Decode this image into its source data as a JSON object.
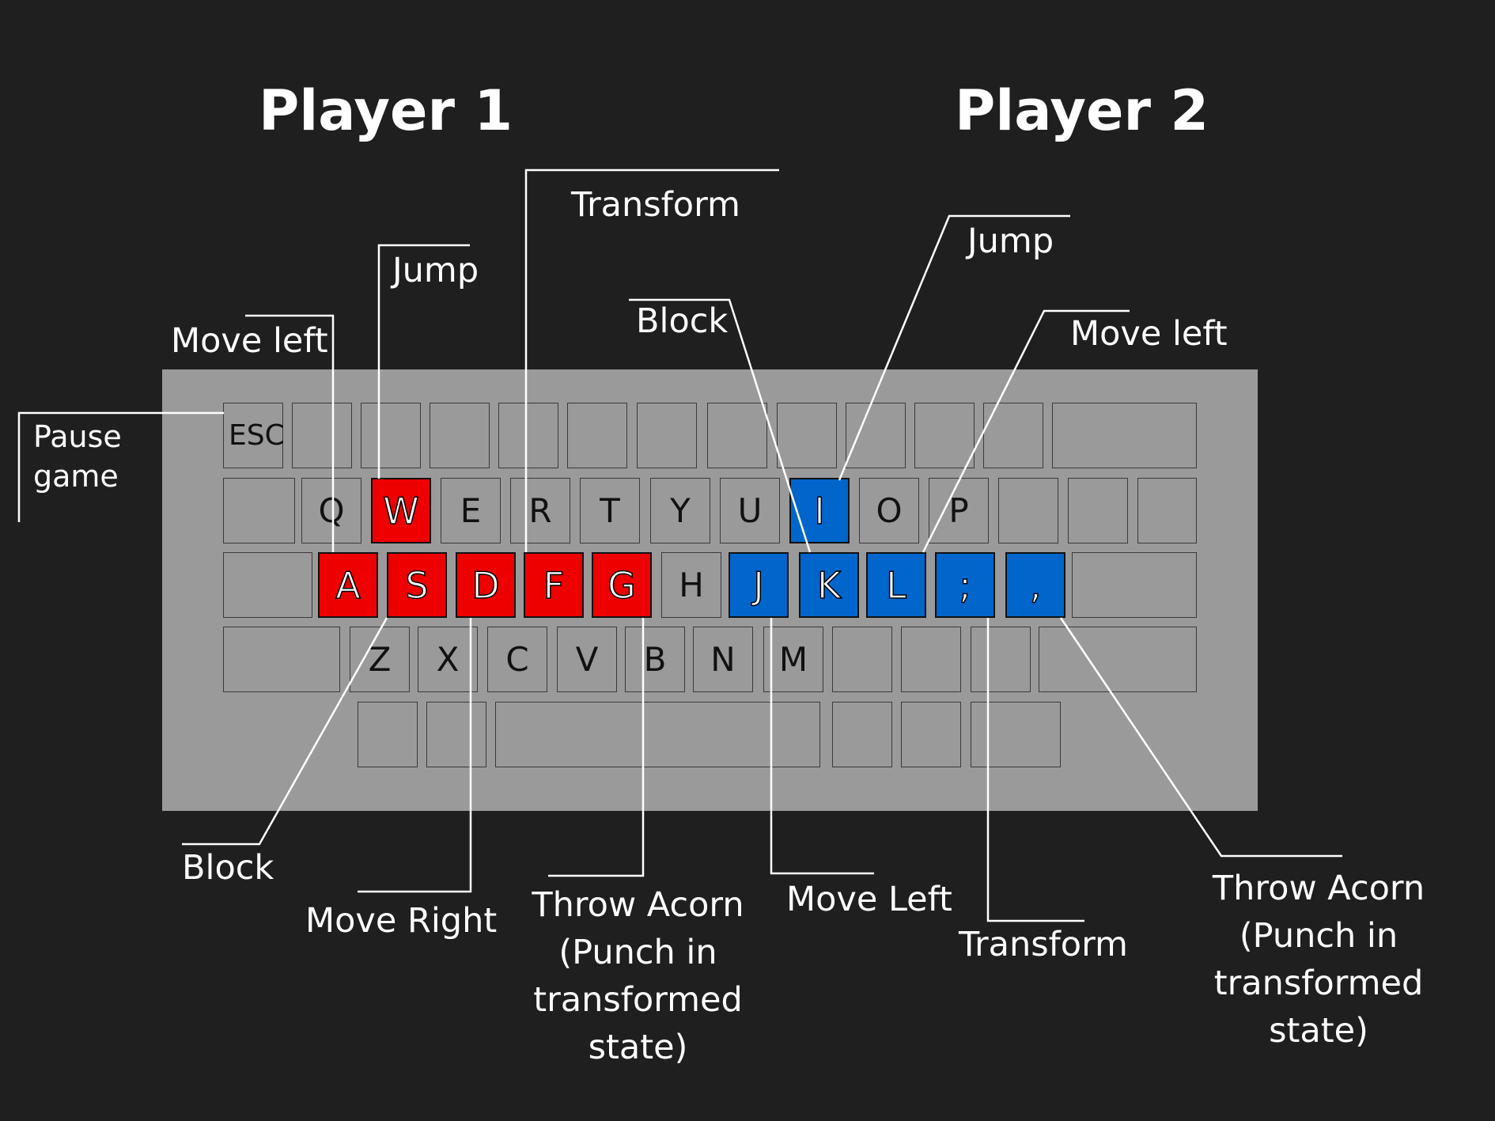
{
  "titles": {
    "player1": "Player 1",
    "player2": "Player 2"
  },
  "colors": {
    "background": "#1f1f1f",
    "keyboard": "#9a9a9a",
    "player1": "#ee0000",
    "player2": "#0066cc"
  },
  "keys": {
    "esc": "ESC",
    "q": "Q",
    "w": "W",
    "e": "E",
    "r": "R",
    "t": "T",
    "y": "Y",
    "u": "U",
    "i": "I",
    "o": "O",
    "p": "P",
    "a": "A",
    "s": "S",
    "d": "D",
    "f": "F",
    "g": "G",
    "h": "H",
    "j": "J",
    "k": "K",
    "l": "L",
    "semicolon": ";",
    "comma": ",",
    "z": "Z",
    "x": "X",
    "c": "C",
    "v": "V",
    "b": "B",
    "n": "N",
    "m": "M"
  },
  "labels": {
    "p1_pause": "Pause\ngame",
    "p1_move_left": "Move left",
    "p1_jump": "Jump",
    "p1_transform": "Transform",
    "p1_block": "Block",
    "p1_move_right": "Move Right",
    "p1_throw": "Throw Acorn\n(Punch in\ntransformed\nstate)",
    "p2_block": "Block",
    "p2_jump": "Jump",
    "p2_move_left": "Move left",
    "p2_move_left_bottom": "Move Left",
    "p2_transform": "Transform",
    "p2_throw": "Throw Acorn\n(Punch in\ntransformed\nstate)"
  }
}
